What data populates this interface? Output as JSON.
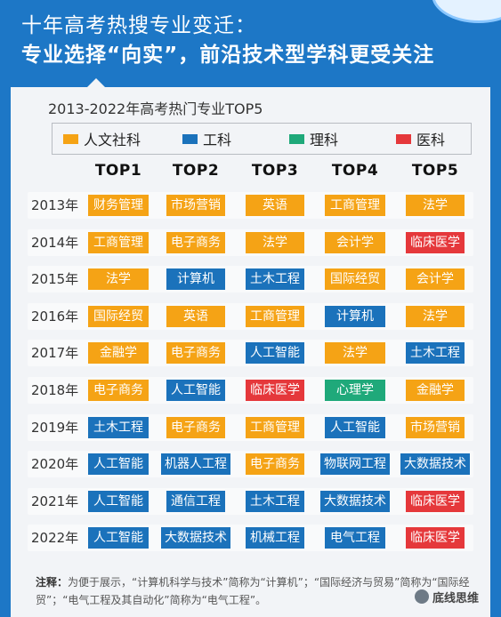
{
  "header": {
    "title_line1": "十年高考热搜专业变迁：",
    "title_line2": "专业选择“向实”，前沿技术型学科更受关注"
  },
  "colors": {
    "background_blue": "#1d77c6",
    "card": "#f2f4f7",
    "humanities": "#f5a315",
    "engineering": "#1b72bb",
    "science": "#1fa97a",
    "medicine": "#e5383b"
  },
  "chart_data": {
    "type": "table",
    "title": "2013-2022年高考热门专业TOP5",
    "legend": [
      {
        "key": "humanities",
        "label": "人文社科",
        "color": "#f5a315"
      },
      {
        "key": "engineering",
        "label": "工科",
        "color": "#1b72bb"
      },
      {
        "key": "science",
        "label": "理科",
        "color": "#1fa97a"
      },
      {
        "key": "medicine",
        "label": "医科",
        "color": "#e5383b"
      }
    ],
    "columns": [
      "TOP1",
      "TOP2",
      "TOP3",
      "TOP4",
      "TOP5"
    ],
    "rows": [
      {
        "year": "2013年",
        "cells": [
          {
            "name": "财务管理",
            "cat": "humanities"
          },
          {
            "name": "市场营销",
            "cat": "humanities"
          },
          {
            "name": "英语",
            "cat": "humanities"
          },
          {
            "name": "工商管理",
            "cat": "humanities"
          },
          {
            "name": "法学",
            "cat": "humanities"
          }
        ]
      },
      {
        "year": "2014年",
        "cells": [
          {
            "name": "工商管理",
            "cat": "humanities"
          },
          {
            "name": "电子商务",
            "cat": "humanities"
          },
          {
            "name": "法学",
            "cat": "humanities"
          },
          {
            "name": "会计学",
            "cat": "humanities"
          },
          {
            "name": "临床医学",
            "cat": "medicine"
          }
        ]
      },
      {
        "year": "2015年",
        "cells": [
          {
            "name": "法学",
            "cat": "humanities"
          },
          {
            "name": "计算机",
            "cat": "engineering"
          },
          {
            "name": "土木工程",
            "cat": "engineering"
          },
          {
            "name": "国际经贸",
            "cat": "humanities"
          },
          {
            "name": "会计学",
            "cat": "humanities"
          }
        ]
      },
      {
        "year": "2016年",
        "cells": [
          {
            "name": "国际经贸",
            "cat": "humanities"
          },
          {
            "name": "英语",
            "cat": "humanities"
          },
          {
            "name": "工商管理",
            "cat": "humanities"
          },
          {
            "name": "计算机",
            "cat": "engineering"
          },
          {
            "name": "法学",
            "cat": "humanities"
          }
        ]
      },
      {
        "year": "2017年",
        "cells": [
          {
            "name": "金融学",
            "cat": "humanities"
          },
          {
            "name": "电子商务",
            "cat": "humanities"
          },
          {
            "name": "人工智能",
            "cat": "engineering"
          },
          {
            "name": "法学",
            "cat": "humanities"
          },
          {
            "name": "土木工程",
            "cat": "engineering"
          }
        ]
      },
      {
        "year": "2018年",
        "cells": [
          {
            "name": "电子商务",
            "cat": "humanities"
          },
          {
            "name": "人工智能",
            "cat": "engineering"
          },
          {
            "name": "临床医学",
            "cat": "medicine"
          },
          {
            "name": "心理学",
            "cat": "science"
          },
          {
            "name": "金融学",
            "cat": "humanities"
          }
        ]
      },
      {
        "year": "2019年",
        "cells": [
          {
            "name": "土木工程",
            "cat": "engineering"
          },
          {
            "name": "电子商务",
            "cat": "humanities"
          },
          {
            "name": "工商管理",
            "cat": "humanities"
          },
          {
            "name": "人工智能",
            "cat": "engineering"
          },
          {
            "name": "市场营销",
            "cat": "humanities"
          }
        ]
      },
      {
        "year": "2020年",
        "cells": [
          {
            "name": "人工智能",
            "cat": "engineering"
          },
          {
            "name": "机器人工程",
            "cat": "engineering"
          },
          {
            "name": "电子商务",
            "cat": "humanities"
          },
          {
            "name": "物联网工程",
            "cat": "engineering"
          },
          {
            "name": "大数据技术",
            "cat": "engineering"
          }
        ]
      },
      {
        "year": "2021年",
        "cells": [
          {
            "name": "人工智能",
            "cat": "engineering"
          },
          {
            "name": "通信工程",
            "cat": "engineering"
          },
          {
            "name": "土木工程",
            "cat": "engineering"
          },
          {
            "name": "大数据技术",
            "cat": "engineering"
          },
          {
            "name": "临床医学",
            "cat": "medicine"
          }
        ]
      },
      {
        "year": "2022年",
        "cells": [
          {
            "name": "人工智能",
            "cat": "engineering"
          },
          {
            "name": "大数据技术",
            "cat": "engineering"
          },
          {
            "name": "机械工程",
            "cat": "engineering"
          },
          {
            "name": "电气工程",
            "cat": "engineering"
          },
          {
            "name": "临床医学",
            "cat": "medicine"
          }
        ]
      }
    ]
  },
  "footnote": {
    "label": "注释：",
    "text": "为便于展示，“计算机科学与技术”简称为“计算机”；“国际经济与贸易”简称为“国际经贸”；“电气工程及其自动化”简称为“电气工程”。"
  },
  "watermark": {
    "text": "底线思维"
  }
}
